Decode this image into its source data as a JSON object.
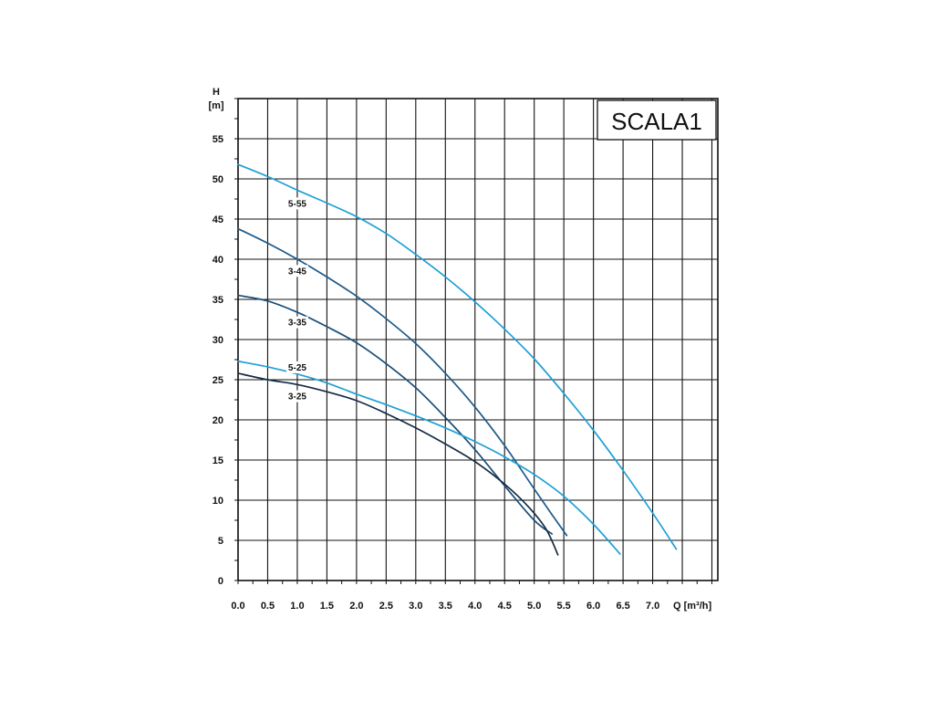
{
  "chart_data": {
    "type": "line",
    "title": "SCALA1",
    "ylabel_top": "H",
    "ylabel_unit": "[m]",
    "xlabel": "Q [m³/h]",
    "xlim": [
      0,
      8.1
    ],
    "ylim": [
      0,
      60
    ],
    "x_ticks": [
      "0.0",
      "0.5",
      "1.0",
      "1.5",
      "2.0",
      "2.5",
      "3.0",
      "3.5",
      "4.0",
      "4.5",
      "5.0",
      "5.5",
      "6.0",
      "6.5",
      "7.0"
    ],
    "y_ticks": [
      "0",
      "5",
      "10",
      "15",
      "20",
      "25",
      "30",
      "35",
      "40",
      "45",
      "50",
      "55"
    ],
    "grid": true,
    "series": [
      {
        "name": "5-55",
        "color": "#1f9fd6",
        "x": [
          0,
          0.5,
          1.0,
          1.5,
          2.0,
          2.5,
          3.0,
          3.5,
          4.0,
          4.5,
          5.0,
          5.5,
          6.0,
          6.5,
          7.0,
          7.4
        ],
        "y": [
          51.8,
          50.3,
          48.6,
          47.0,
          45.3,
          43.2,
          40.6,
          37.8,
          34.7,
          31.3,
          27.6,
          23.3,
          18.7,
          13.7,
          8.4,
          3.9
        ]
      },
      {
        "name": "3-45",
        "color": "#1c5a8a",
        "x": [
          0,
          0.5,
          1.0,
          1.5,
          2.0,
          2.5,
          3.0,
          3.5,
          4.0,
          4.5,
          5.0,
          5.3,
          5.55
        ],
        "y": [
          43.8,
          42.0,
          40.0,
          37.8,
          35.4,
          32.6,
          29.5,
          25.8,
          21.6,
          16.8,
          11.4,
          8.2,
          5.6
        ]
      },
      {
        "name": "3-35",
        "color": "#1a4f7a",
        "x": [
          0,
          0.5,
          1.0,
          1.5,
          2.0,
          2.5,
          3.0,
          3.5,
          4.0,
          4.5,
          5.0,
          5.3
        ],
        "y": [
          35.5,
          34.8,
          33.4,
          31.6,
          29.6,
          27.0,
          24.0,
          20.3,
          16.3,
          11.8,
          7.5,
          5.8
        ]
      },
      {
        "name": "5-25",
        "color": "#1f9fd6",
        "x": [
          0,
          0.5,
          1.0,
          1.5,
          2.0,
          2.5,
          3.0,
          3.5,
          4.0,
          4.5,
          5.0,
          5.5,
          6.0,
          6.45
        ],
        "y": [
          27.3,
          26.6,
          25.7,
          24.6,
          23.2,
          21.9,
          20.5,
          19.0,
          17.3,
          15.4,
          13.2,
          10.5,
          7.0,
          3.3
        ]
      },
      {
        "name": "3-25",
        "color": "#152c44",
        "x": [
          0,
          0.5,
          1.0,
          1.5,
          2.0,
          2.5,
          3.0,
          3.5,
          4.0,
          4.5,
          4.9,
          5.2,
          5.4
        ],
        "y": [
          25.8,
          25.0,
          24.4,
          23.5,
          22.4,
          20.8,
          19.0,
          17.0,
          14.8,
          12.0,
          9.2,
          6.4,
          3.2
        ]
      }
    ]
  }
}
